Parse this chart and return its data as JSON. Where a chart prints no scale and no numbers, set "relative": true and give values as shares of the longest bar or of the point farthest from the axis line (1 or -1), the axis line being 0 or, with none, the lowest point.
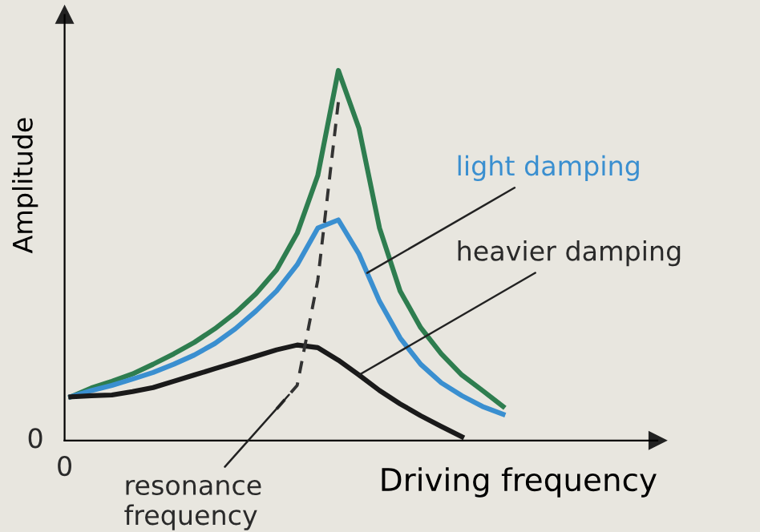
{
  "chart_data": {
    "type": "line",
    "relative": true,
    "xlabel": "Driving frequency",
    "ylabel": "Amplitude",
    "categories": [
      null,
      null,
      null,
      null,
      null,
      null,
      null,
      null,
      null,
      null,
      null,
      null,
      null,
      null,
      null,
      null,
      null,
      null,
      null,
      null,
      null,
      null
    ],
    "series": [
      {
        "color": "#2e7d4f",
        "values": [
          0.118,
          0.142,
          0.16,
          0.18,
          0.206,
          0.234,
          0.265,
          0.302,
          0.345,
          0.397,
          0.461,
          0.56,
          0.716,
          1.0,
          0.844,
          0.574,
          0.404,
          0.305,
          0.234,
          0.177,
          0.135,
          0.092
        ]
      },
      {
        "name": "light damping",
        "color": "#3a8fd0",
        "values": [
          0.118,
          0.135,
          0.149,
          0.166,
          0.184,
          0.206,
          0.231,
          0.262,
          0.302,
          0.35,
          0.404,
          0.475,
          0.574,
          0.596,
          0.504,
          0.376,
          0.277,
          0.206,
          0.156,
          0.121,
          0.092,
          0.071
        ]
      },
      {
        "name": "heavier damping",
        "color": "#1a1a1a",
        "values": [
          0.118,
          0.121,
          0.123,
          0.132,
          0.143,
          0.16,
          0.177,
          0.194,
          0.211,
          0.228,
          0.245,
          0.258,
          0.251,
          0.217,
          0.177,
          0.135,
          0.099,
          0.067,
          0.038,
          0.01,
          null,
          null
        ]
      },
      {
        "name": "resonance frequency",
        "color": "#333333",
        "line_style": "dashed",
        "values": [
          null,
          null,
          null,
          null,
          null,
          null,
          null,
          null,
          null,
          null,
          0.085,
          0.149,
          0.433,
          0.915,
          null,
          null,
          null,
          null,
          null,
          null,
          null,
          null
        ]
      }
    ],
    "annotations": [
      "0",
      "0"
    ],
    "legend": false
  }
}
